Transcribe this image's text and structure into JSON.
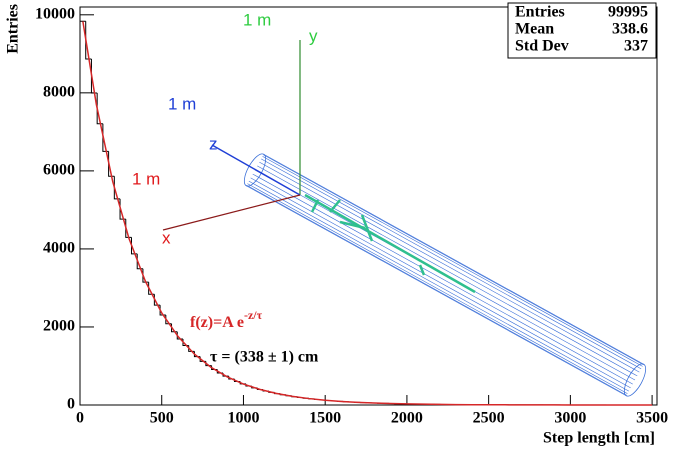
{
  "chart_data": {
    "type": "histogram",
    "x_label": "Step length [cm]",
    "y_label": "Entries",
    "bins": [
      0,
      35,
      70,
      105,
      140,
      175,
      210,
      245,
      280,
      315,
      350,
      385,
      420,
      455,
      490,
      525,
      560,
      595,
      630,
      665,
      700,
      735,
      770,
      805,
      840,
      875,
      910,
      945,
      980,
      1015,
      1050,
      1085,
      1120,
      1155,
      1190,
      1225,
      1260,
      1295,
      1330,
      1365,
      1400,
      1435,
      1470,
      1505,
      1540,
      1575,
      1610,
      1645,
      1680,
      1715,
      1750,
      1785,
      1820,
      1855,
      1890,
      1925,
      1960,
      1995,
      2030,
      2065,
      2100,
      2135,
      2170,
      2205,
      2240,
      2275,
      2310,
      2345,
      2380,
      2415,
      2450,
      2485,
      2520,
      2555,
      2590,
      2625,
      2660,
      2695,
      2730,
      2765,
      2800,
      2835,
      2870,
      2905,
      2940,
      2975,
      3010,
      3045,
      3080,
      3115,
      3150,
      3185,
      3220,
      3255,
      3290,
      3325,
      3360,
      3395,
      3430,
      3465,
      3500
    ],
    "counts": [
      9836,
      8868,
      7996,
      7209,
      6500,
      5861,
      5284,
      4764,
      4296,
      3873,
      3492,
      3149,
      2839,
      2560,
      2308,
      2081,
      1876,
      1692,
      1525,
      1375,
      1240,
      1118,
      1008,
      909,
      820,
      739,
      666,
      601,
      542,
      488,
      440,
      397,
      358,
      323,
      291,
      262,
      236,
      213,
      192,
      173,
      156,
      141,
      127,
      115,
      103,
      93,
      84,
      76,
      68,
      62,
      56,
      50,
      45,
      41,
      37,
      33,
      30,
      27,
      24,
      22,
      20,
      18,
      16,
      14,
      13,
      12,
      11,
      10,
      9,
      8,
      7,
      6,
      6,
      5,
      5,
      4,
      4,
      3,
      3,
      3,
      2,
      2,
      2,
      2,
      1,
      1,
      1,
      1,
      1,
      1,
      1,
      1,
      0,
      0,
      0,
      0,
      0,
      0,
      0,
      0
    ],
    "color": "#000000",
    "xlim": [
      0,
      3530
    ],
    "ylim": [
      0,
      10200
    ],
    "xticks": [
      0,
      500,
      1000,
      1500,
      2000,
      2500,
      3000,
      3500
    ],
    "yticks": [
      0,
      2000,
      4000,
      6000,
      8000,
      10000
    ],
    "fit": {
      "color": "#d62728",
      "x": [
        17.5,
        100,
        200,
        300,
        400,
        500,
        600,
        700,
        800,
        900,
        1000,
        1100,
        1200,
        1300,
        1400,
        1500,
        1600,
        1700,
        1800,
        1900,
        2000,
        2100,
        2200,
        2300,
        2400,
        2500,
        2600,
        2700,
        2800,
        2900,
        3000,
        3100,
        3200,
        3300,
        3400,
        3500
      ],
      "values": [
        9833,
        7703,
        5730,
        4263,
        3171,
        2359,
        1755,
        1305,
        971,
        722,
        537,
        400,
        297,
        221,
        165,
        123,
        91,
        68,
        50,
        37,
        28,
        21,
        15,
        11,
        8,
        6,
        5,
        3,
        3,
        2,
        1,
        1,
        1,
        1,
        0,
        0
      ]
    },
    "annotations": {
      "formula": "f(z)=A e",
      "formula_sup": "-z/τ",
      "formula_color": "#d62728",
      "tau": "τ = (338 ± 1) cm"
    },
    "stats": [
      {
        "label": "Entries",
        "value": 99995
      },
      {
        "label": "Mean",
        "value": 338.6
      },
      {
        "label": "Std Dev",
        "value": 337
      }
    ],
    "overlay_labels": [
      {
        "text": "1 m",
        "color": "#2ecc40"
      },
      {
        "text": "y",
        "color": "#2ecc40"
      },
      {
        "text": "1 m",
        "color": "#1f3fd6"
      },
      {
        "text": "z",
        "color": "#1f3fd6"
      },
      {
        "text": "1 m",
        "color": "#e0191c"
      },
      {
        "text": "x",
        "color": "#e0191c"
      }
    ]
  }
}
